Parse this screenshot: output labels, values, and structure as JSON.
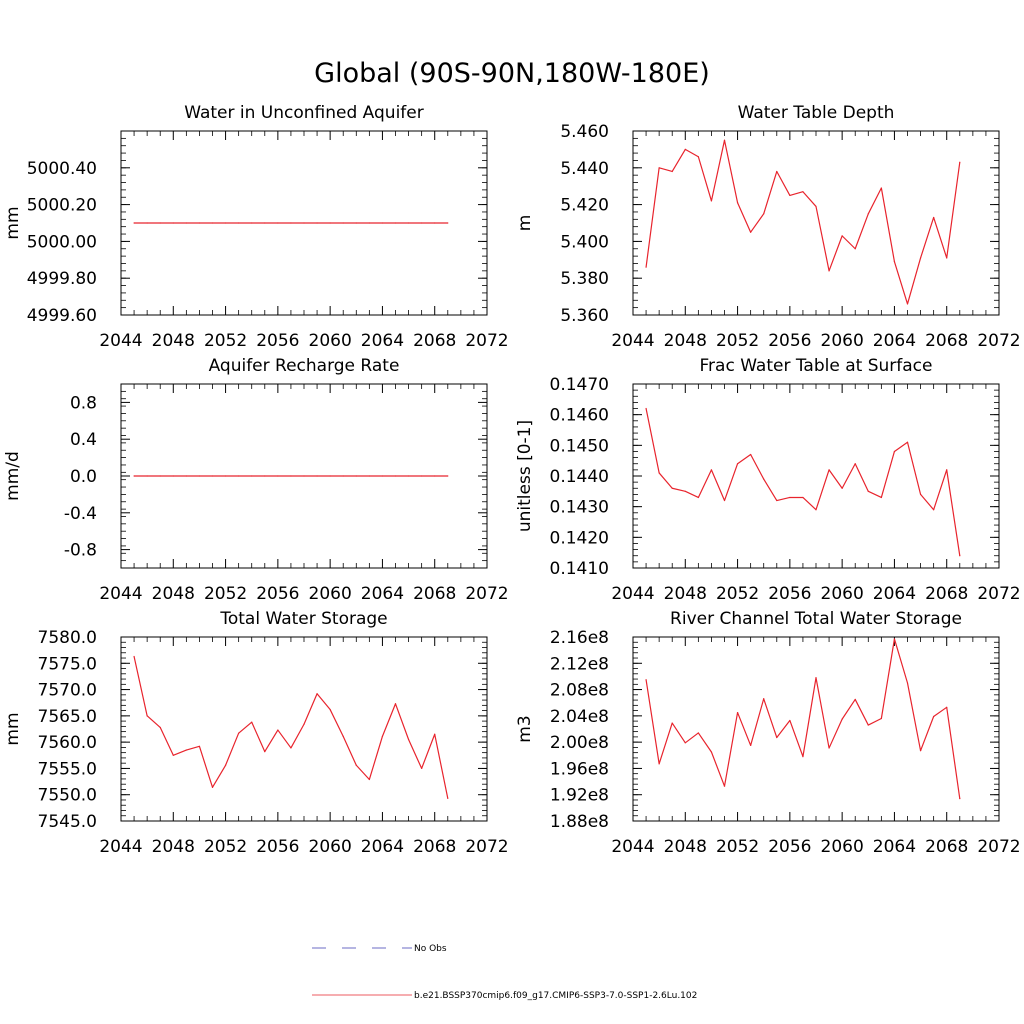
{
  "title": "Global (90S-90N,180W-180E)",
  "legend": {
    "entries": [
      {
        "label": "No Obs",
        "color": "#3b3bb3",
        "dash": true
      },
      {
        "label": "b.e21.BSSP370cmip6.f09_g17.CMIP6-SSP3-7.0-SSP1-2.6Lu.102",
        "color": "#e8242d",
        "dash": false
      }
    ]
  },
  "colors": {
    "series": "#e8242d",
    "axis": "#000000"
  },
  "chart_data": [
    {
      "type": "line",
      "title": "Water in Unconfined Aquifer",
      "ylabel": "mm",
      "xlim": [
        2044,
        2072
      ],
      "ylim": [
        4999.6,
        5000.6
      ],
      "xticks": [
        2044,
        2048,
        2052,
        2056,
        2060,
        2064,
        2068,
        2072
      ],
      "xtick_labels": [
        "2044",
        "2048",
        "2052",
        "2056",
        "2060",
        "2064",
        "2068",
        "2072"
      ],
      "yticks": [
        4999.6,
        4999.8,
        5000.0,
        5000.2,
        5000.4
      ],
      "ytick_labels": [
        "4999.60",
        "4999.80",
        "5000.00",
        "5000.20",
        "5000.40"
      ],
      "x": [
        2045,
        2046,
        2047,
        2048,
        2049,
        2050,
        2051,
        2052,
        2053,
        2054,
        2055,
        2056,
        2057,
        2058,
        2059,
        2060,
        2061,
        2062,
        2063,
        2064,
        2065,
        2066,
        2067,
        2068,
        2069
      ],
      "values": [
        5000.1,
        5000.1,
        5000.1,
        5000.1,
        5000.1,
        5000.1,
        5000.1,
        5000.1,
        5000.1,
        5000.1,
        5000.1,
        5000.1,
        5000.1,
        5000.1,
        5000.1,
        5000.1,
        5000.1,
        5000.1,
        5000.1,
        5000.1,
        5000.1,
        5000.1,
        5000.1,
        5000.1,
        5000.1
      ]
    },
    {
      "type": "line",
      "title": "Water Table Depth",
      "ylabel": "m",
      "xlim": [
        2044,
        2072
      ],
      "ylim": [
        5.36,
        5.46
      ],
      "xticks": [
        2044,
        2048,
        2052,
        2056,
        2060,
        2064,
        2068,
        2072
      ],
      "xtick_labels": [
        "2044",
        "2048",
        "2052",
        "2056",
        "2060",
        "2064",
        "2068",
        "2072"
      ],
      "yticks": [
        5.36,
        5.38,
        5.4,
        5.42,
        5.44,
        5.46
      ],
      "ytick_labels": [
        "5.360",
        "5.380",
        "5.400",
        "5.420",
        "5.440",
        "5.460"
      ],
      "x": [
        2045,
        2046,
        2047,
        2048,
        2049,
        2050,
        2051,
        2052,
        2053,
        2054,
        2055,
        2056,
        2057,
        2058,
        2059,
        2060,
        2061,
        2062,
        2063,
        2064,
        2065,
        2066,
        2067,
        2068,
        2069
      ],
      "values": [
        5.386,
        5.44,
        5.438,
        5.45,
        5.446,
        5.422,
        5.455,
        5.421,
        5.405,
        5.415,
        5.438,
        5.425,
        5.427,
        5.419,
        5.384,
        5.403,
        5.396,
        5.415,
        5.429,
        5.389,
        5.366,
        5.391,
        5.413,
        5.391,
        5.443
      ]
    },
    {
      "type": "line",
      "title": "Aquifer Recharge Rate",
      "ylabel": "mm/d",
      "xlim": [
        2044,
        2072
      ],
      "ylim": [
        -1.0,
        1.0
      ],
      "xticks": [
        2044,
        2048,
        2052,
        2056,
        2060,
        2064,
        2068,
        2072
      ],
      "xtick_labels": [
        "2044",
        "2048",
        "2052",
        "2056",
        "2060",
        "2064",
        "2068",
        "2072"
      ],
      "yticks": [
        -0.8,
        -0.4,
        0.0,
        0.4,
        0.8
      ],
      "ytick_labels": [
        "-0.8",
        "-0.4",
        "0.0",
        "0.4",
        "0.8"
      ],
      "x": [
        2045,
        2046,
        2047,
        2048,
        2049,
        2050,
        2051,
        2052,
        2053,
        2054,
        2055,
        2056,
        2057,
        2058,
        2059,
        2060,
        2061,
        2062,
        2063,
        2064,
        2065,
        2066,
        2067,
        2068,
        2069
      ],
      "values": [
        0,
        0,
        0,
        0,
        0,
        0,
        0,
        0,
        0,
        0,
        0,
        0,
        0,
        0,
        0,
        0,
        0,
        0,
        0,
        0,
        0,
        0,
        0,
        0,
        0
      ]
    },
    {
      "type": "line",
      "title": "Frac Water Table at Surface",
      "ylabel": "unitless [0-1]",
      "xlim": [
        2044,
        2072
      ],
      "ylim": [
        0.141,
        0.147
      ],
      "xticks": [
        2044,
        2048,
        2052,
        2056,
        2060,
        2064,
        2068,
        2072
      ],
      "xtick_labels": [
        "2044",
        "2048",
        "2052",
        "2056",
        "2060",
        "2064",
        "2068",
        "2072"
      ],
      "yticks": [
        0.141,
        0.142,
        0.143,
        0.144,
        0.145,
        0.146,
        0.147
      ],
      "ytick_labels": [
        "0.1410",
        "0.1420",
        "0.1430",
        "0.1440",
        "0.1450",
        "0.1460",
        "0.1470"
      ],
      "x": [
        2045,
        2046,
        2047,
        2048,
        2049,
        2050,
        2051,
        2052,
        2053,
        2054,
        2055,
        2056,
        2057,
        2058,
        2059,
        2060,
        2061,
        2062,
        2063,
        2064,
        2065,
        2066,
        2067,
        2068,
        2069
      ],
      "values": [
        0.1462,
        0.1441,
        0.1436,
        0.1435,
        0.1433,
        0.1442,
        0.1432,
        0.1444,
        0.1447,
        0.1439,
        0.1432,
        0.1433,
        0.1433,
        0.1429,
        0.1442,
        0.1436,
        0.1444,
        0.1435,
        0.1433,
        0.1448,
        0.1451,
        0.1434,
        0.1429,
        0.1442,
        0.1414
      ]
    },
    {
      "type": "line",
      "title": "Total Water Storage",
      "ylabel": "mm",
      "xlim": [
        2044,
        2072
      ],
      "ylim": [
        7545.0,
        7580.0
      ],
      "xticks": [
        2044,
        2048,
        2052,
        2056,
        2060,
        2064,
        2068,
        2072
      ],
      "xtick_labels": [
        "2044",
        "2048",
        "2052",
        "2056",
        "2060",
        "2064",
        "2068",
        "2072"
      ],
      "yticks": [
        7545,
        7550,
        7555,
        7560,
        7565,
        7570,
        7575,
        7580
      ],
      "ytick_labels": [
        "7545.0",
        "7550.0",
        "7555.0",
        "7560.0",
        "7565.0",
        "7570.0",
        "7575.0",
        "7580.0"
      ],
      "x": [
        2045,
        2046,
        2047,
        2048,
        2049,
        2050,
        2051,
        2052,
        2053,
        2054,
        2055,
        2056,
        2057,
        2058,
        2059,
        2060,
        2061,
        2062,
        2063,
        2064,
        2065,
        2066,
        2067,
        2068,
        2069
      ],
      "values": [
        7576.3,
        7565.0,
        7562.8,
        7557.5,
        7558.5,
        7559.2,
        7551.4,
        7555.6,
        7561.7,
        7563.8,
        7558.2,
        7562.3,
        7558.9,
        7563.4,
        7569.2,
        7566.2,
        7561.1,
        7555.6,
        7552.9,
        7561.1,
        7567.3,
        7560.5,
        7555.0,
        7561.5,
        7549.3
      ]
    },
    {
      "type": "line",
      "title": "River Channel Total Water Storage",
      "ylabel": "m3",
      "xlim": [
        2044,
        2072
      ],
      "ylim": [
        188000000,
        216000000
      ],
      "xticks": [
        2044,
        2048,
        2052,
        2056,
        2060,
        2064,
        2068,
        2072
      ],
      "xtick_labels": [
        "2044",
        "2048",
        "2052",
        "2056",
        "2060",
        "2064",
        "2068",
        "2072"
      ],
      "yticks": [
        188000000,
        192000000,
        196000000,
        200000000,
        204000000,
        208000000,
        212000000,
        216000000
      ],
      "ytick_labels": [
        "1.88e8",
        "1.92e8",
        "1.96e8",
        "2.00e8",
        "2.04e8",
        "2.08e8",
        "2.12e8",
        "2.16e8"
      ],
      "x": [
        2045,
        2046,
        2047,
        2048,
        2049,
        2050,
        2051,
        2052,
        2053,
        2054,
        2055,
        2056,
        2057,
        2058,
        2059,
        2060,
        2061,
        2062,
        2063,
        2064,
        2065,
        2066,
        2067,
        2068,
        2069
      ],
      "values": [
        209500000,
        196700000,
        202900000,
        199900000,
        201400000,
        198500000,
        193300000,
        204500000,
        199500000,
        206600000,
        200700000,
        203300000,
        197800000,
        209800000,
        199100000,
        203500000,
        206500000,
        202600000,
        203600000,
        215700000,
        209000000,
        198700000,
        203900000,
        205300000,
        191400000
      ]
    }
  ]
}
